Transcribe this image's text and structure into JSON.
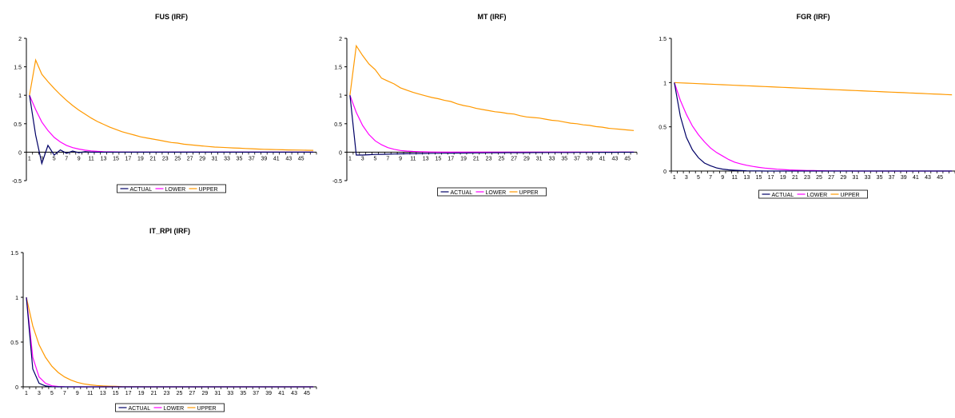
{
  "series_colors": {
    "ACTUAL": "#000066",
    "LOWER": "#ff00ff",
    "UPPER": "#ff9900"
  },
  "legend_labels": [
    "ACTUAL",
    "LOWER",
    "UPPER"
  ],
  "chart_data": [
    {
      "type": "line",
      "title": "FUS (IRF)",
      "x": [
        1,
        2,
        3,
        4,
        5,
        6,
        7,
        8,
        9,
        10,
        11,
        12,
        13,
        14,
        15,
        16,
        17,
        18,
        19,
        20,
        21,
        22,
        23,
        24,
        25,
        26,
        27,
        28,
        29,
        30,
        31,
        32,
        33,
        34,
        35,
        36,
        37,
        38,
        39,
        40,
        41,
        42,
        43,
        44,
        45,
        46,
        47
      ],
      "x_tick_labels": [
        "1",
        "3",
        "5",
        "7",
        "9",
        "11",
        "13",
        "15",
        "17",
        "19",
        "21",
        "23",
        "25",
        "27",
        "29",
        "31",
        "33",
        "35",
        "37",
        "39",
        "41",
        "43",
        "45"
      ],
      "ylim": [
        -0.5,
        2
      ],
      "y_ticks": [
        "-0.5",
        "0",
        "0.5",
        "1",
        "1.5",
        "2"
      ],
      "legend": "bottom",
      "series": [
        {
          "name": "ACTUAL",
          "values": [
            1,
            0.3,
            -0.2,
            0.12,
            -0.05,
            0.04,
            -0.02,
            0.02,
            -0.01,
            0.01,
            0,
            0,
            0,
            0,
            0,
            0,
            0,
            0,
            0,
            0,
            0,
            0,
            0,
            0,
            0,
            0,
            0,
            0,
            0,
            0,
            0,
            0,
            0,
            0,
            0,
            0,
            0,
            0,
            0,
            0,
            0,
            0,
            0,
            0,
            0,
            0,
            0
          ]
        },
        {
          "name": "LOWER",
          "values": [
            1,
            0.75,
            0.53,
            0.38,
            0.26,
            0.18,
            0.12,
            0.08,
            0.055,
            0.035,
            0.022,
            0.014,
            0.009,
            0.006,
            0.004,
            0.002,
            0.001,
            0.001,
            0,
            0,
            0,
            0,
            0,
            0,
            0,
            0,
            0,
            0,
            0,
            0,
            0,
            0,
            0,
            0,
            0,
            0,
            0,
            0,
            0,
            0,
            0,
            0,
            0,
            0,
            0,
            0,
            0
          ]
        },
        {
          "name": "UPPER",
          "values": [
            1,
            1.62,
            1.37,
            1.24,
            1.12,
            1.01,
            0.91,
            0.82,
            0.74,
            0.67,
            0.6,
            0.54,
            0.49,
            0.44,
            0.4,
            0.36,
            0.33,
            0.3,
            0.27,
            0.25,
            0.23,
            0.21,
            0.19,
            0.17,
            0.16,
            0.14,
            0.13,
            0.12,
            0.11,
            0.1,
            0.09,
            0.085,
            0.08,
            0.075,
            0.07,
            0.065,
            0.06,
            0.055,
            0.05,
            0.048,
            0.045,
            0.042,
            0.04,
            0.038,
            0.036,
            0.034,
            0.032
          ]
        }
      ]
    },
    {
      "type": "line",
      "title": "MT (IRF)",
      "x": [
        1,
        2,
        3,
        4,
        5,
        6,
        7,
        8,
        9,
        10,
        11,
        12,
        13,
        14,
        15,
        16,
        17,
        18,
        19,
        20,
        21,
        22,
        23,
        24,
        25,
        26,
        27,
        28,
        29,
        30,
        31,
        32,
        33,
        34,
        35,
        36,
        37,
        38,
        39,
        40,
        41,
        42,
        43,
        44,
        45,
        46
      ],
      "x_tick_labels": [
        "1",
        "3",
        "5",
        "7",
        "9",
        "11",
        "13",
        "15",
        "17",
        "19",
        "21",
        "23",
        "25",
        "27",
        "29",
        "31",
        "33",
        "35",
        "37",
        "39",
        "41",
        "43",
        "45"
      ],
      "ylim": [
        -0.5,
        2
      ],
      "y_ticks": [
        "-0.5",
        "0",
        "0.5",
        "1",
        "1.5",
        "2"
      ],
      "legend": "bottom",
      "series": [
        {
          "name": "ACTUAL",
          "values": [
            1,
            -0.05,
            -0.05,
            -0.045,
            -0.04,
            -0.038,
            -0.035,
            -0.033,
            -0.03,
            -0.028,
            -0.026,
            -0.024,
            -0.022,
            -0.02,
            -0.019,
            -0.018,
            -0.017,
            -0.016,
            -0.015,
            -0.014,
            -0.013,
            -0.012,
            -0.011,
            -0.01,
            -0.01,
            -0.009,
            -0.009,
            -0.008,
            -0.008,
            -0.007,
            -0.007,
            -0.006,
            -0.006,
            -0.005,
            -0.005,
            -0.005,
            -0.004,
            -0.004,
            -0.004,
            -0.003,
            -0.003,
            -0.003,
            -0.003,
            -0.002,
            -0.002,
            -0.002
          ]
        },
        {
          "name": "LOWER",
          "values": [
            1,
            0.7,
            0.47,
            0.31,
            0.2,
            0.13,
            0.08,
            0.05,
            0.03,
            0.02,
            0.012,
            0.008,
            0.005,
            0.003,
            0.002,
            0.001,
            0,
            0,
            0,
            0,
            0,
            0,
            0,
            0,
            0,
            0,
            0,
            0,
            0,
            0,
            0,
            0,
            0,
            0,
            0,
            0,
            0,
            0,
            0,
            0,
            0,
            0,
            0,
            0,
            0,
            0
          ]
        },
        {
          "name": "UPPER",
          "values": [
            1,
            1.87,
            1.7,
            1.55,
            1.45,
            1.3,
            1.25,
            1.2,
            1.13,
            1.09,
            1.05,
            1.02,
            0.99,
            0.96,
            0.94,
            0.91,
            0.89,
            0.85,
            0.82,
            0.8,
            0.77,
            0.75,
            0.73,
            0.71,
            0.7,
            0.68,
            0.67,
            0.64,
            0.62,
            0.61,
            0.6,
            0.58,
            0.56,
            0.55,
            0.53,
            0.51,
            0.5,
            0.48,
            0.47,
            0.45,
            0.44,
            0.42,
            0.41,
            0.4,
            0.39,
            0.38
          ]
        }
      ]
    },
    {
      "type": "line",
      "title": "FGR (IRF)",
      "x": [
        1,
        2,
        3,
        4,
        5,
        6,
        7,
        8,
        9,
        10,
        11,
        12,
        13,
        14,
        15,
        16,
        17,
        18,
        19,
        20,
        21,
        22,
        23,
        24,
        25,
        26,
        27,
        28,
        29,
        30,
        31,
        32,
        33,
        34,
        35,
        36,
        37,
        38,
        39,
        40,
        41,
        42,
        43,
        44,
        45,
        46,
        47
      ],
      "x_tick_labels": [
        "1",
        "3",
        "5",
        "7",
        "9",
        "11",
        "13",
        "15",
        "17",
        "19",
        "21",
        "23",
        "25",
        "27",
        "29",
        "31",
        "33",
        "35",
        "37",
        "39",
        "41",
        "43",
        "45"
      ],
      "ylim": [
        0,
        1.5
      ],
      "y_ticks": [
        "0",
        "0.5",
        "1",
        "1.5"
      ],
      "legend": "bottom",
      "series": [
        {
          "name": "ACTUAL",
          "values": [
            1,
            0.62,
            0.38,
            0.24,
            0.15,
            0.09,
            0.06,
            0.035,
            0.022,
            0.014,
            0.009,
            0.005,
            0.003,
            0.002,
            0.001,
            0,
            0,
            0,
            0,
            0,
            0,
            0,
            0,
            0,
            0,
            0,
            0,
            0,
            0,
            0,
            0,
            0,
            0,
            0,
            0,
            0,
            0,
            0,
            0,
            0,
            0,
            0,
            0,
            0,
            0,
            0,
            0
          ]
        },
        {
          "name": "LOWER",
          "values": [
            1,
            0.8,
            0.64,
            0.51,
            0.41,
            0.33,
            0.26,
            0.21,
            0.17,
            0.13,
            0.1,
            0.08,
            0.065,
            0.052,
            0.042,
            0.033,
            0.027,
            0.021,
            0.017,
            0.013,
            0.01,
            0.008,
            0.006,
            0.005,
            0.004,
            0.003,
            0.002,
            0.002,
            0.001,
            0.001,
            0,
            0,
            0,
            0,
            0,
            0,
            0,
            0,
            0,
            0,
            0,
            0,
            0,
            0,
            0,
            0,
            0
          ]
        },
        {
          "name": "UPPER",
          "values": [
            1,
            0.997,
            0.994,
            0.991,
            0.988,
            0.985,
            0.982,
            0.979,
            0.976,
            0.973,
            0.97,
            0.967,
            0.964,
            0.961,
            0.958,
            0.955,
            0.952,
            0.949,
            0.946,
            0.943,
            0.94,
            0.937,
            0.934,
            0.931,
            0.928,
            0.925,
            0.922,
            0.919,
            0.916,
            0.913,
            0.91,
            0.907,
            0.904,
            0.901,
            0.898,
            0.895,
            0.892,
            0.889,
            0.886,
            0.883,
            0.88,
            0.877,
            0.874,
            0.871,
            0.868,
            0.865,
            0.862
          ]
        }
      ]
    },
    {
      "type": "line",
      "title": "IT_RPI (IRF)",
      "x": [
        1,
        2,
        3,
        4,
        5,
        6,
        7,
        8,
        9,
        10,
        11,
        12,
        13,
        14,
        15,
        16,
        17,
        18,
        19,
        20,
        21,
        22,
        23,
        24,
        25,
        26,
        27,
        28,
        29,
        30,
        31,
        32,
        33,
        34,
        35,
        36,
        37,
        38,
        39,
        40,
        41,
        42,
        43,
        44,
        45,
        46
      ],
      "x_tick_labels": [
        "1",
        "3",
        "5",
        "7",
        "9",
        "11",
        "13",
        "15",
        "17",
        "19",
        "21",
        "23",
        "25",
        "27",
        "29",
        "31",
        "33",
        "35",
        "37",
        "39",
        "41",
        "43",
        "45"
      ],
      "ylim": [
        0,
        1.5
      ],
      "y_ticks": [
        "0",
        "0.5",
        "1",
        "1.5"
      ],
      "legend": "bottom",
      "series": [
        {
          "name": "ACTUAL",
          "values": [
            1,
            0.2,
            0.04,
            0.01,
            0.002,
            0,
            0,
            0,
            0,
            0,
            0,
            0,
            0,
            0,
            0,
            0,
            0,
            0,
            0,
            0,
            0,
            0,
            0,
            0,
            0,
            0,
            0,
            0,
            0,
            0,
            0,
            0,
            0,
            0,
            0,
            0,
            0,
            0,
            0,
            0,
            0,
            0,
            0,
            0,
            0,
            0
          ]
        },
        {
          "name": "LOWER",
          "values": [
            1,
            0.33,
            0.11,
            0.04,
            0.012,
            0.004,
            0.001,
            0,
            0,
            0,
            0,
            0,
            0,
            0,
            0,
            0,
            0,
            0,
            0,
            0,
            0,
            0,
            0,
            0,
            0,
            0,
            0,
            0,
            0,
            0,
            0,
            0,
            0,
            0,
            0,
            0,
            0,
            0,
            0,
            0,
            0,
            0,
            0,
            0,
            0,
            0
          ]
        },
        {
          "name": "UPPER",
          "values": [
            1,
            0.68,
            0.47,
            0.33,
            0.23,
            0.16,
            0.11,
            0.075,
            0.05,
            0.033,
            0.022,
            0.015,
            0.01,
            0.007,
            0.005,
            0.003,
            0.002,
            0.001,
            0.001,
            0,
            0,
            0,
            0,
            0,
            0,
            0,
            0,
            0,
            0,
            0,
            0,
            0,
            0,
            0,
            0,
            0,
            0,
            0,
            0,
            0,
            0,
            0,
            0,
            0,
            0,
            0
          ]
        }
      ]
    }
  ]
}
